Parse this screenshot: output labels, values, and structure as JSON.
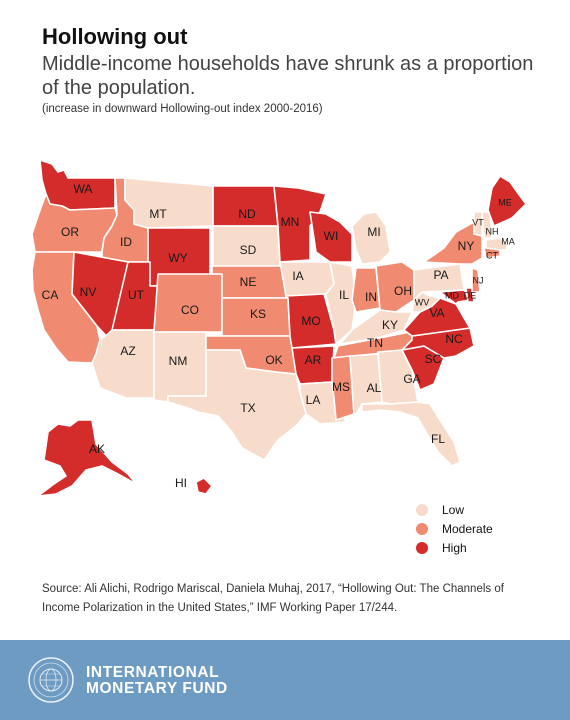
{
  "header": {
    "title": "Hollowing out",
    "subtitle": "Middle-income households have shrunk as a proportion of the population.",
    "note": "(increase in downward Hollowing-out index 2000-2016)"
  },
  "colors": {
    "low": "#f8dccb",
    "moderate": "#f08a70",
    "high": "#d42b2b",
    "border": "#ffffff",
    "footer": "#6e9bc2"
  },
  "legend": [
    {
      "key": "low",
      "label": "Low"
    },
    {
      "key": "moderate",
      "label": "Moderate"
    },
    {
      "key": "high",
      "label": "High"
    }
  ],
  "states": [
    {
      "abbr": "WA",
      "level": "high"
    },
    {
      "abbr": "OR",
      "level": "moderate"
    },
    {
      "abbr": "CA",
      "level": "moderate"
    },
    {
      "abbr": "ID",
      "level": "moderate"
    },
    {
      "abbr": "NV",
      "level": "high"
    },
    {
      "abbr": "MT",
      "level": "low"
    },
    {
      "abbr": "WY",
      "level": "high"
    },
    {
      "abbr": "UT",
      "level": "high"
    },
    {
      "abbr": "AZ",
      "level": "low"
    },
    {
      "abbr": "CO",
      "level": "moderate"
    },
    {
      "abbr": "NM",
      "level": "low"
    },
    {
      "abbr": "ND",
      "level": "high"
    },
    {
      "abbr": "SD",
      "level": "low"
    },
    {
      "abbr": "NE",
      "level": "moderate"
    },
    {
      "abbr": "KS",
      "level": "moderate"
    },
    {
      "abbr": "OK",
      "level": "moderate"
    },
    {
      "abbr": "TX",
      "level": "low"
    },
    {
      "abbr": "MN",
      "level": "high"
    },
    {
      "abbr": "IA",
      "level": "low"
    },
    {
      "abbr": "MO",
      "level": "high"
    },
    {
      "abbr": "AR",
      "level": "high"
    },
    {
      "abbr": "LA",
      "level": "low"
    },
    {
      "abbr": "WI",
      "level": "high"
    },
    {
      "abbr": "IL",
      "level": "low"
    },
    {
      "abbr": "MI",
      "level": "low"
    },
    {
      "abbr": "IN",
      "level": "moderate"
    },
    {
      "abbr": "OH",
      "level": "moderate"
    },
    {
      "abbr": "KY",
      "level": "low"
    },
    {
      "abbr": "TN",
      "level": "moderate"
    },
    {
      "abbr": "MS",
      "level": "moderate"
    },
    {
      "abbr": "AL",
      "level": "low"
    },
    {
      "abbr": "GA",
      "level": "low"
    },
    {
      "abbr": "FL",
      "level": "low"
    },
    {
      "abbr": "SC",
      "level": "high"
    },
    {
      "abbr": "NC",
      "level": "high"
    },
    {
      "abbr": "VA",
      "level": "high"
    },
    {
      "abbr": "WV",
      "level": "low"
    },
    {
      "abbr": "PA",
      "level": "low"
    },
    {
      "abbr": "NY",
      "level": "moderate"
    },
    {
      "abbr": "MD",
      "level": "high"
    },
    {
      "abbr": "DE",
      "level": "high"
    },
    {
      "abbr": "NJ",
      "level": "moderate"
    },
    {
      "abbr": "CT",
      "level": "moderate"
    },
    {
      "abbr": "MA",
      "level": "low"
    },
    {
      "abbr": "VT",
      "level": "low"
    },
    {
      "abbr": "NH",
      "level": "low"
    },
    {
      "abbr": "ME",
      "level": "high"
    },
    {
      "abbr": "AK",
      "level": "high"
    },
    {
      "abbr": "HI",
      "level": "high"
    }
  ],
  "source": "Source: Ali Alichi, Rodrigo Mariscal, Daniela Muhaj, 2017, “Hollowing Out: The Channels of Income Polarization in the United States,” IMF Working Paper 17/244.",
  "footer": {
    "org_line1": "INTERNATIONAL",
    "org_line2": "MONETARY FUND",
    "seal_icon": "imf-seal-icon"
  }
}
